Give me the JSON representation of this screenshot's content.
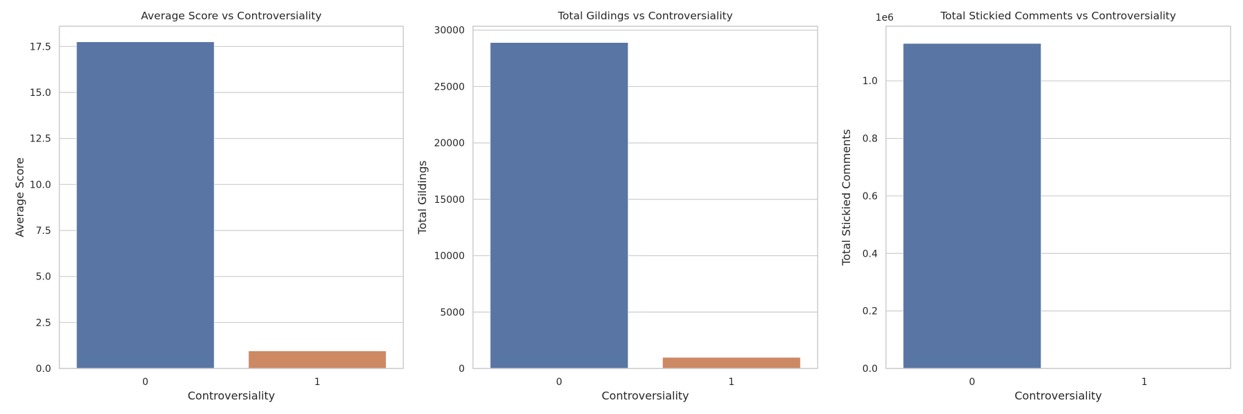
{
  "chart_data": [
    {
      "type": "bar",
      "title": "Average Score vs Controversiality",
      "xlabel": "Controversiality",
      "ylabel": "Average Score",
      "categories": [
        "0",
        "1"
      ],
      "values": [
        17.75,
        0.95
      ],
      "colors": [
        "#5975a4",
        "#cc8963"
      ],
      "ylim": [
        0,
        18.6
      ],
      "yticks": [
        0,
        2.5,
        5.0,
        7.5,
        10.0,
        12.5,
        15.0,
        17.5
      ],
      "ytick_labels": [
        "0.0",
        "2.5",
        "5.0",
        "7.5",
        "10.0",
        "12.5",
        "15.0",
        "17.5"
      ],
      "offset_label": "",
      "grid": true
    },
    {
      "type": "bar",
      "title": "Total Gildings vs Controversiality",
      "xlabel": "Controversiality",
      "ylabel": "Total Gildings",
      "categories": [
        "0",
        "1"
      ],
      "values": [
        28900,
        980
      ],
      "colors": [
        "#5975a4",
        "#cc8963"
      ],
      "ylim": [
        0,
        30350
      ],
      "yticks": [
        0,
        5000,
        10000,
        15000,
        20000,
        25000,
        30000
      ],
      "ytick_labels": [
        "0",
        "5000",
        "10000",
        "15000",
        "20000",
        "25000",
        "30000"
      ],
      "offset_label": "",
      "grid": true
    },
    {
      "type": "bar",
      "title": "Total Stickied Comments vs Controversiality",
      "xlabel": "Controversiality",
      "ylabel": "Total Stickied Comments",
      "categories": [
        "0",
        "1"
      ],
      "values": [
        1130000,
        0
      ],
      "colors": [
        "#5975a4",
        "#cc8963"
      ],
      "ylim": [
        0,
        1190000
      ],
      "yticks": [
        0,
        200000,
        400000,
        600000,
        800000,
        1000000
      ],
      "ytick_labels": [
        "0.0",
        "0.2",
        "0.4",
        "0.6",
        "0.8",
        "1.0"
      ],
      "offset_label": "1e6",
      "grid": true
    }
  ]
}
